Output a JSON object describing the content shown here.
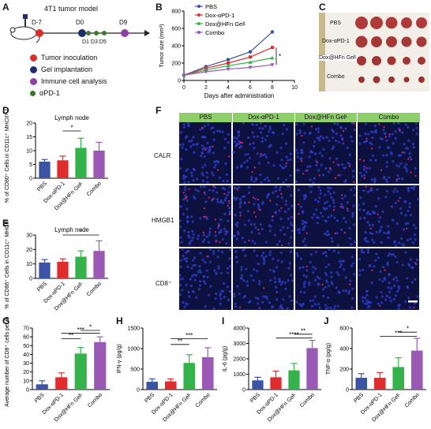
{
  "panel_letters": {
    "a": "A",
    "b": "B",
    "c": "C",
    "d": "D",
    "e": "E",
    "f": "F",
    "g": "G",
    "h": "H",
    "i": "I",
    "j": "J"
  },
  "schematic": {
    "title": "4T1 tumor model",
    "timeline": [
      "D-7",
      "D0",
      "D1 D3 D5",
      "D9"
    ],
    "legend": [
      {
        "label": "Tumor inoculation",
        "color": "#d9302a"
      },
      {
        "label": "Gel implantation",
        "color": "#1f2d6e"
      },
      {
        "label": "Immune cell analysis",
        "color": "#8e3fa8"
      },
      {
        "label": "αPD-1",
        "color": "#3c7a2a"
      }
    ]
  },
  "photo_labels": [
    "PBS",
    "Dox-αPD-1",
    "Dox@HFn Gelᴸ",
    "Combo"
  ],
  "micro": {
    "columns": [
      "PBS",
      "Dox-αPD-1",
      "Dox@HFn Gelᴸ",
      "Combo"
    ],
    "rows": [
      "CALR",
      "HMGB1",
      "CD8⁺"
    ]
  },
  "colors": {
    "PBS": "#3a53a4",
    "Dox": "#e02c2c",
    "Gel": "#34b34a",
    "Combo": "#9b59b6"
  },
  "chart_data": [
    {
      "id": "B",
      "type": "line",
      "xlabel": "Days after administration",
      "ylabel": "Tumor size (mm³)",
      "x": [
        0,
        2,
        4,
        6,
        8
      ],
      "xlim": [
        0,
        10
      ],
      "ylim": [
        0,
        800
      ],
      "xticks": [
        "0",
        "2",
        "4",
        "6",
        "8",
        "10"
      ],
      "yticks": [
        "0",
        "200",
        "400",
        "600",
        "800"
      ],
      "series": [
        {
          "name": "PBS",
          "values": [
            60,
            160,
            240,
            330,
            560
          ]
        },
        {
          "name": "Dox-αPD-1",
          "values": [
            60,
            140,
            200,
            270,
            380
          ]
        },
        {
          "name": "Dox@HFn Gelᴸ",
          "values": [
            60,
            120,
            170,
            210,
            260
          ]
        },
        {
          "name": "Combo",
          "values": [
            60,
            100,
            130,
            150,
            180
          ]
        }
      ],
      "annotation": "*"
    },
    {
      "id": "D",
      "type": "bar",
      "title": "Lymph node",
      "ylabel": "% of CD80⁺ Cells in CD11c⁺ MHCIIʰⁱ Cells",
      "categories": [
        "PBS",
        "Dox-αPD-1",
        "Dox@HFn Gelᴸ",
        "Combo"
      ],
      "values": [
        6,
        6.5,
        11,
        10
      ],
      "errors": [
        0.8,
        1.5,
        3.5,
        3
      ],
      "ylim": [
        0,
        20
      ],
      "yticks": [
        "0",
        "5",
        "10",
        "15",
        "20"
      ],
      "annotation": "*"
    },
    {
      "id": "E",
      "type": "bar",
      "title": "Lymph node",
      "ylabel": "% of CD86⁺ Cells in CD11c⁺ MHCIIʰⁱ Cells",
      "categories": [
        "PBS",
        "Dox-αPD-1",
        "Dox@HFn Gelᴸ",
        "Combo"
      ],
      "values": [
        11,
        11.5,
        15,
        19
      ],
      "errors": [
        2,
        2,
        4,
        7
      ],
      "ylim": [
        0,
        30
      ],
      "yticks": [
        "0",
        "10",
        "20",
        "30"
      ],
      "annotation": "*"
    },
    {
      "id": "G",
      "type": "bar",
      "ylabel": "Average number of CD8⁺ cells per field",
      "categories": [
        "PBS",
        "Dox-αPD-1",
        "Dox@HFn Gelᴸ",
        "Combo"
      ],
      "values": [
        6,
        14,
        41,
        54
      ],
      "errors": [
        4,
        5,
        7,
        6
      ],
      "ylim": [
        0,
        70
      ],
      "yticks": [
        "0",
        "10",
        "20",
        "30",
        "40",
        "50",
        "60",
        "70"
      ],
      "annotations": [
        "**",
        "***",
        "*"
      ]
    },
    {
      "id": "H",
      "type": "bar",
      "ylabel": "IFN-γ (pg/g)",
      "categories": [
        "PBS",
        "Dox-αPD-1",
        "Dox@HFn Gelᴸ",
        "Combo"
      ],
      "values": [
        190,
        200,
        650,
        790
      ],
      "errors": [
        70,
        60,
        200,
        230
      ],
      "ylim": [
        0,
        1500
      ],
      "yticks": [
        "0",
        "500",
        "1000",
        "1500"
      ],
      "annotations": [
        "**",
        "***"
      ]
    },
    {
      "id": "I",
      "type": "bar",
      "ylabel": "IL-6 (pg/g)",
      "categories": [
        "PBS",
        "Dox-αPD-1",
        "Dox@HFn Gelᴸ",
        "Combo"
      ],
      "values": [
        600,
        800,
        1250,
        2700
      ],
      "errors": [
        200,
        400,
        450,
        500
      ],
      "ylim": [
        0,
        4000
      ],
      "yticks": [
        "0",
        "1000",
        "2000",
        "3000",
        "4000"
      ],
      "annotations": [
        "**",
        "****"
      ]
    },
    {
      "id": "J",
      "type": "bar",
      "ylabel": "TNF-α (pg/g)",
      "categories": [
        "PBS",
        "Dox-αPD-1",
        "Dox@HFn Gelᴸ",
        "Combo"
      ],
      "values": [
        115,
        115,
        220,
        380
      ],
      "errors": [
        40,
        50,
        90,
        120
      ],
      "ylim": [
        0,
        600
      ],
      "yticks": [
        "0",
        "200",
        "400",
        "600"
      ],
      "annotations": [
        "*",
        "***"
      ]
    }
  ]
}
